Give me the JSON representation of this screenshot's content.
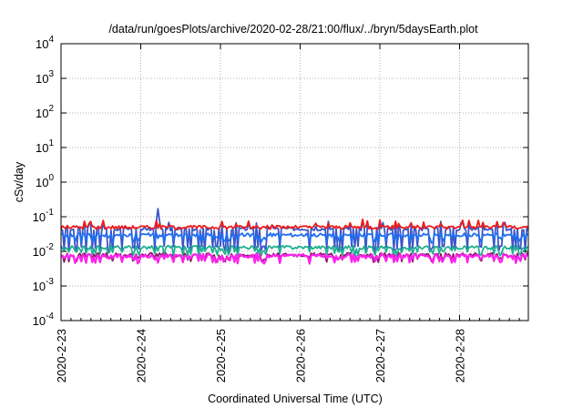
{
  "chart_data": {
    "type": "line",
    "title": "/data/run/goesPlots/archive/2020-02-28/21:00/flux/../bryn/5daysEarth.plot",
    "xlabel": "Coordinated Universal Time (UTC)",
    "ylabel": "cSv/day",
    "yscale": "log",
    "ylim": [
      0.0001,
      10000
    ],
    "xlim": [
      "2020-02-23",
      "2020-02-28 21:00"
    ],
    "grid": true,
    "x_ticks": [
      "2020-2-23",
      "2020-2-24",
      "2020-2-25",
      "2020-2-26",
      "2020-2-27",
      "2020-2-28"
    ],
    "y_ticks": [
      {
        "mantissa": "10",
        "exp": "-4"
      },
      {
        "mantissa": "10",
        "exp": "-3"
      },
      {
        "mantissa": "10",
        "exp": "-2"
      },
      {
        "mantissa": "10",
        "exp": "-1"
      },
      {
        "mantissa": "10",
        "exp": "0"
      },
      {
        "mantissa": "10",
        "exp": "1"
      },
      {
        "mantissa": "10",
        "exp": "2"
      },
      {
        "mantissa": "10",
        "exp": "3"
      },
      {
        "mantissa": "10",
        "exp": "4"
      }
    ],
    "series": [
      {
        "color": "#ee1c1c",
        "baseline": 0.05,
        "spike_peak": 0.085,
        "values_note": ""
      },
      {
        "color": "#3a55c8",
        "baseline": 0.045,
        "spike_peak": 0.17,
        "dip_low": 0.012
      },
      {
        "color": "#1e6ef0",
        "baseline": 0.03,
        "dip_low": 0.022
      },
      {
        "color": "#20b090",
        "baseline": 0.013,
        "dip_low": 0.009
      },
      {
        "color": "#8a1a6e",
        "baseline": 0.008,
        "dip_low": 0.006
      },
      {
        "color": "#ff22ee",
        "baseline": 0.0075,
        "dip_low": 0.0055
      }
    ]
  }
}
